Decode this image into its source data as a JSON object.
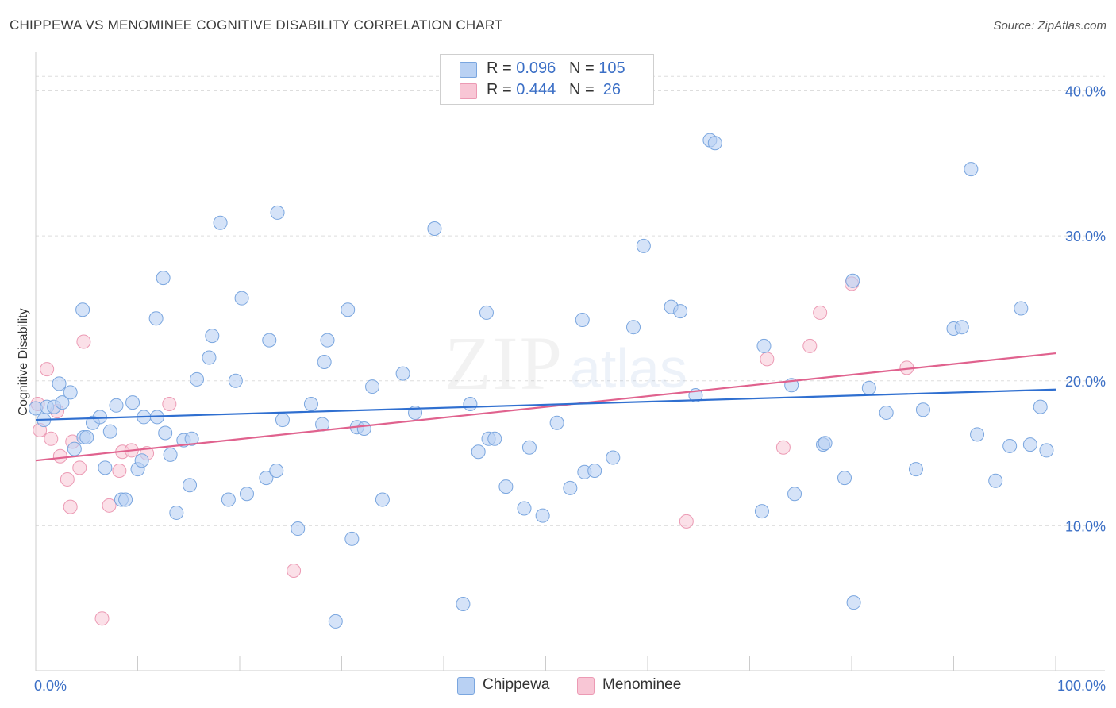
{
  "title": "CHIPPEWA VS MENOMINEE COGNITIVE DISABILITY CORRELATION CHART",
  "source": "Source: ZipAtlas.com",
  "watermark": {
    "zip": "ZIP",
    "atlas": "atlas"
  },
  "legend": {
    "rows": [
      {
        "r_label": "R = ",
        "r_value": "0.096",
        "n_label": "N = ",
        "n_value": "105"
      },
      {
        "r_label": "R = ",
        "r_value": "0.444",
        "n_label": "N = ",
        "n_value": " 26"
      }
    ],
    "bottom": [
      {
        "label": "Chippewa"
      },
      {
        "label": "Menominee"
      }
    ]
  },
  "colors": {
    "chippewa_fill": "#b9d1f3",
    "chippewa_stroke": "#7aa6df",
    "chippewa_line": "#2f6fd0",
    "menominee_fill": "#f8c6d5",
    "menominee_stroke": "#ec9ab4",
    "menominee_line": "#e0628e",
    "tick_label": "#3b6fc6",
    "grid": "#dddddd"
  },
  "chart_data": {
    "type": "scatter",
    "title": "CHIPPEWA VS MENOMINEE COGNITIVE DISABILITY CORRELATION CHART",
    "xlabel": "",
    "ylabel": "Cognitive Disability",
    "xlim": [
      0,
      100
    ],
    "ylim": [
      0,
      42
    ],
    "x_tick_labels": [
      {
        "value": 0,
        "label": "0.0%"
      },
      {
        "value": 100,
        "label": "100.0%"
      }
    ],
    "y_tick_labels": [
      {
        "value": 10,
        "label": "10.0%"
      },
      {
        "value": 20,
        "label": "20.0%"
      },
      {
        "value": 30,
        "label": "30.0%"
      },
      {
        "value": 40,
        "label": "40.0%"
      }
    ],
    "grid": true,
    "series": [
      {
        "name": "Chippewa",
        "R": 0.096,
        "N": 105,
        "trend": {
          "x": [
            0,
            100
          ],
          "y": [
            17.3,
            19.4
          ]
        },
        "points": [
          [
            0.0,
            18.1
          ],
          [
            0.8,
            17.3
          ],
          [
            1.1,
            18.2
          ],
          [
            1.8,
            18.2
          ],
          [
            2.3,
            19.8
          ],
          [
            2.6,
            18.5
          ],
          [
            3.4,
            19.2
          ],
          [
            3.8,
            15.3
          ],
          [
            4.6,
            24.9
          ],
          [
            4.7,
            16.1
          ],
          [
            5.0,
            16.1
          ],
          [
            5.6,
            17.1
          ],
          [
            6.3,
            17.5
          ],
          [
            6.8,
            14.0
          ],
          [
            7.3,
            16.5
          ],
          [
            7.9,
            18.3
          ],
          [
            8.4,
            11.8
          ],
          [
            8.8,
            11.8
          ],
          [
            9.5,
            18.5
          ],
          [
            10.0,
            13.9
          ],
          [
            10.4,
            14.5
          ],
          [
            10.6,
            17.5
          ],
          [
            11.8,
            24.3
          ],
          [
            11.9,
            17.5
          ],
          [
            12.5,
            27.1
          ],
          [
            12.7,
            16.4
          ],
          [
            13.2,
            14.9
          ],
          [
            13.8,
            10.9
          ],
          [
            14.5,
            15.9
          ],
          [
            15.1,
            12.8
          ],
          [
            15.3,
            16.0
          ],
          [
            15.8,
            20.1
          ],
          [
            17.0,
            21.6
          ],
          [
            17.3,
            23.1
          ],
          [
            18.1,
            30.9
          ],
          [
            18.9,
            11.8
          ],
          [
            19.6,
            20.0
          ],
          [
            20.2,
            25.7
          ],
          [
            20.7,
            12.2
          ],
          [
            22.6,
            13.3
          ],
          [
            22.9,
            22.8
          ],
          [
            23.6,
            13.8
          ],
          [
            23.7,
            31.6
          ],
          [
            24.2,
            17.3
          ],
          [
            25.7,
            9.8
          ],
          [
            27.0,
            18.4
          ],
          [
            28.1,
            17.0
          ],
          [
            28.3,
            21.3
          ],
          [
            28.6,
            22.8
          ],
          [
            29.4,
            3.4
          ],
          [
            30.6,
            24.9
          ],
          [
            31.0,
            9.1
          ],
          [
            31.5,
            16.8
          ],
          [
            32.2,
            16.7
          ],
          [
            33.0,
            19.6
          ],
          [
            34.0,
            11.8
          ],
          [
            36.0,
            20.5
          ],
          [
            37.2,
            17.8
          ],
          [
            39.1,
            30.5
          ],
          [
            41.9,
            4.6
          ],
          [
            42.6,
            18.4
          ],
          [
            43.4,
            15.1
          ],
          [
            44.2,
            24.7
          ],
          [
            44.4,
            16.0
          ],
          [
            45.0,
            16.0
          ],
          [
            46.1,
            12.7
          ],
          [
            47.9,
            11.2
          ],
          [
            48.4,
            15.4
          ],
          [
            49.7,
            10.7
          ],
          [
            51.1,
            17.1
          ],
          [
            52.4,
            12.6
          ],
          [
            53.6,
            24.2
          ],
          [
            53.8,
            13.7
          ],
          [
            54.8,
            13.8
          ],
          [
            56.6,
            14.7
          ],
          [
            58.6,
            23.7
          ],
          [
            59.6,
            29.3
          ],
          [
            62.3,
            25.1
          ],
          [
            63.2,
            24.8
          ],
          [
            64.7,
            19.0
          ],
          [
            66.1,
            36.6
          ],
          [
            66.6,
            36.4
          ],
          [
            71.2,
            11.0
          ],
          [
            71.4,
            22.4
          ],
          [
            74.1,
            19.7
          ],
          [
            74.4,
            12.2
          ],
          [
            77.2,
            15.6
          ],
          [
            77.4,
            15.7
          ],
          [
            79.3,
            13.3
          ],
          [
            80.1,
            26.9
          ],
          [
            80.2,
            4.7
          ],
          [
            81.7,
            19.5
          ],
          [
            83.4,
            17.8
          ],
          [
            86.3,
            13.9
          ],
          [
            87.0,
            18.0
          ],
          [
            90.0,
            23.6
          ],
          [
            90.8,
            23.7
          ],
          [
            91.7,
            34.6
          ],
          [
            92.3,
            16.3
          ],
          [
            94.1,
            13.1
          ],
          [
            95.5,
            15.5
          ],
          [
            96.6,
            25.0
          ],
          [
            97.5,
            15.6
          ],
          [
            98.5,
            18.2
          ],
          [
            99.1,
            15.2
          ]
        ]
      },
      {
        "name": "Menominee",
        "R": 0.444,
        "N": 26,
        "trend": {
          "x": [
            0,
            100
          ],
          "y": [
            14.5,
            21.9
          ]
        },
        "points": [
          [
            0.2,
            18.4
          ],
          [
            0.4,
            16.6
          ],
          [
            1.1,
            20.8
          ],
          [
            1.5,
            16.0
          ],
          [
            2.1,
            17.9
          ],
          [
            2.4,
            14.8
          ],
          [
            3.1,
            13.2
          ],
          [
            3.4,
            11.3
          ],
          [
            3.6,
            15.8
          ],
          [
            4.3,
            14.0
          ],
          [
            4.7,
            22.7
          ],
          [
            6.5,
            3.6
          ],
          [
            7.2,
            11.4
          ],
          [
            8.2,
            13.8
          ],
          [
            8.5,
            15.1
          ],
          [
            9.4,
            15.2
          ],
          [
            10.9,
            15.0
          ],
          [
            13.1,
            18.4
          ],
          [
            25.3,
            6.9
          ],
          [
            63.8,
            10.3
          ],
          [
            71.7,
            21.5
          ],
          [
            73.3,
            15.4
          ],
          [
            75.9,
            22.4
          ],
          [
            76.9,
            24.7
          ],
          [
            80.0,
            26.7
          ],
          [
            85.4,
            20.9
          ]
        ]
      }
    ]
  }
}
